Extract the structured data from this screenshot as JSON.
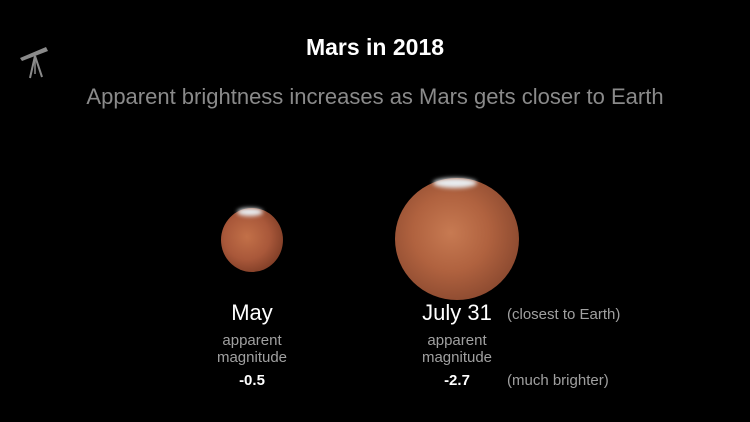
{
  "header": {
    "title": "Mars in 2018",
    "subtitle": "Apparent brightness increases as Mars gets closer to Earth",
    "icon": "telescope-icon"
  },
  "planets": [
    {
      "month": "May",
      "label_line1": "apparent",
      "label_line2": "magnitude",
      "magnitude": "-0.5"
    },
    {
      "month": "July 31",
      "note": "(closest to Earth)",
      "label_line1": "apparent",
      "label_line2": "magnitude",
      "magnitude": "-2.7",
      "magnitude_note": "(much brighter)"
    }
  ],
  "colors": {
    "background": "#000000",
    "subtitle": "#8a8a8a",
    "mars": "#b0623f"
  }
}
